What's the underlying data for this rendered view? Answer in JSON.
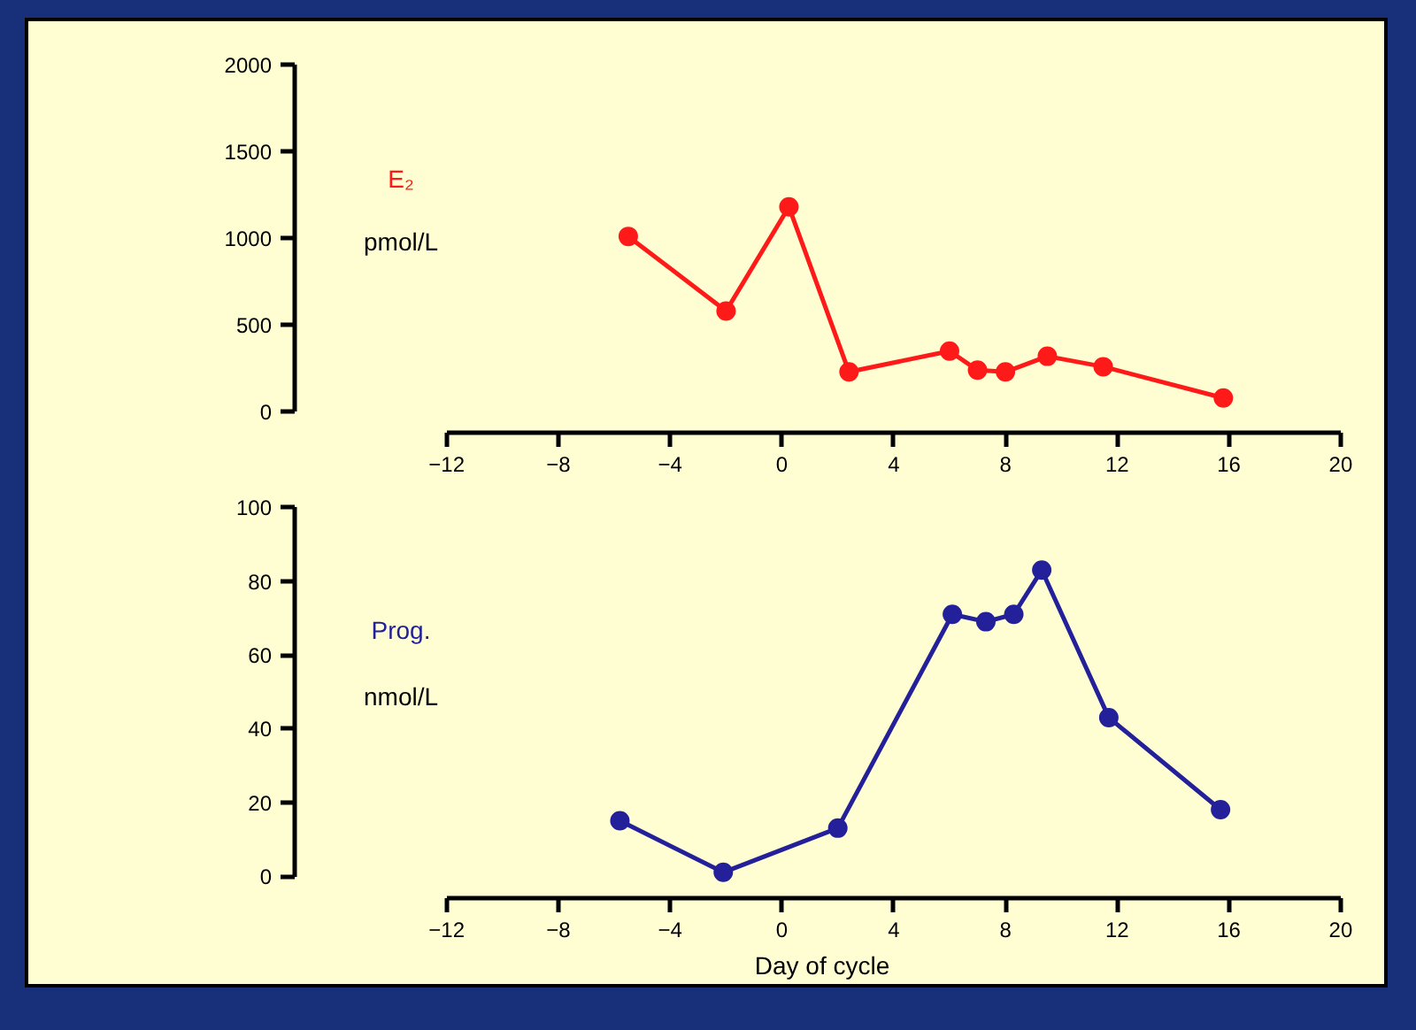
{
  "chart_data": [
    {
      "type": "line",
      "ylabel": "pmol/L",
      "marker": "circle",
      "line_style": "solid",
      "grid": false,
      "xlim": [
        -12,
        20
      ],
      "xticks": [
        -12,
        -8,
        -4,
        0,
        4,
        8,
        12,
        16,
        20
      ],
      "ylim": [
        0,
        2000
      ],
      "yticks": [
        0,
        500,
        1000,
        1500,
        2000
      ],
      "series": [
        {
          "name": "E₂",
          "color": "#ff1a1a",
          "x": [
            -5.5,
            -2.0,
            0.25,
            2.4,
            6.0,
            7.0,
            8.0,
            9.5,
            11.5,
            15.8
          ],
          "values": [
            1010,
            580,
            1180,
            230,
            350,
            240,
            230,
            320,
            260,
            80
          ]
        }
      ]
    },
    {
      "type": "line",
      "xlabel": "Day of cycle",
      "ylabel": "nmol/L",
      "marker": "circle",
      "line_style": "solid",
      "grid": false,
      "xlim": [
        -12,
        20
      ],
      "xticks": [
        -12,
        -8,
        -4,
        0,
        4,
        8,
        12,
        16,
        20
      ],
      "ylim": [
        0,
        100
      ],
      "yticks": [
        0,
        20,
        40,
        60,
        80,
        100
      ],
      "series": [
        {
          "name": "Prog.",
          "color": "#23209a",
          "x": [
            -5.8,
            -2.1,
            2.0,
            6.1,
            7.3,
            8.3,
            9.3,
            11.7,
            15.7
          ],
          "values": [
            15,
            1,
            13,
            71,
            69,
            71,
            83,
            43,
            18
          ]
        }
      ]
    }
  ]
}
